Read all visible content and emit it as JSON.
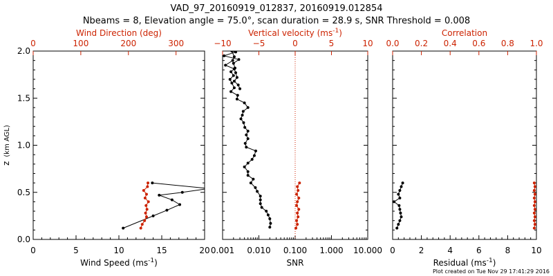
{
  "header": {
    "title": "VAD_97_20160919_012837, 20160919.012854",
    "subtitle": "Nbeams = 8, Elevation angle = 75.0°, scan duration = 28.9 s, SNR Threshold = 0.008",
    "footer": "Plot created on Tue Nov 29 17:41:29 2016"
  },
  "colors": {
    "primary": "#000000",
    "secondary": "#cc2200"
  },
  "chart_data": [
    {
      "type": "line",
      "ylabel_parts": [
        "z",
        "(km AGL)"
      ],
      "ylim": [
        0,
        2.0
      ],
      "yticks": [
        "0.0",
        "0.5",
        "1.0",
        "1.5",
        "2.0"
      ],
      "xlabel_bottom_parts": [
        "Wind Speed (ms",
        "-1",
        ")"
      ],
      "xlim_bottom": [
        0,
        20
      ],
      "xticks_bottom": [
        "0",
        "5",
        "10",
        "15",
        "20"
      ],
      "xlabel_top": "Wind Direction (deg)",
      "xlim_top": [
        0,
        360
      ],
      "xticks_top": [
        "0",
        "100",
        "200",
        "300"
      ],
      "series": [
        {
          "color": "#000000",
          "axis": "bottom",
          "x": [
            10.5,
            14.0,
            15.6,
            17.1,
            16.2,
            14.7,
            17.4,
            20.5,
            13.9
          ],
          "y": [
            0.12,
            0.25,
            0.31,
            0.37,
            0.42,
            0.47,
            0.5,
            0.54,
            0.6
          ]
        },
        {
          "color": "#cc2200",
          "axis": "top",
          "x": [
            226,
            229,
            234,
            238,
            236,
            239,
            237,
            242,
            235,
            238,
            232,
            240,
            241
          ],
          "y": [
            0.12,
            0.16,
            0.2,
            0.24,
            0.28,
            0.32,
            0.36,
            0.4,
            0.44,
            0.48,
            0.52,
            0.56,
            0.6
          ]
        }
      ]
    },
    {
      "type": "line",
      "xscale_bottom": "log",
      "xlabel_bottom": "SNR",
      "xlim_bottom": [
        0.001,
        10
      ],
      "xticks_bottom": [
        "0.001",
        "0.010",
        "0.100",
        "1.000",
        "10.000"
      ],
      "xlabel_top_parts": [
        "Vertical velocity (ms",
        "-1",
        ")"
      ],
      "xlim_top": [
        -10,
        10
      ],
      "xticks_top": [
        "−10",
        "−5",
        "0",
        "5",
        "10"
      ],
      "zero_line": 0,
      "series": [
        {
          "color": "#000000",
          "axis": "bottom",
          "x": [
            0.02,
            0.021,
            0.02,
            0.018,
            0.016,
            0.012,
            0.011,
            0.011,
            0.011,
            0.009,
            0.008,
            0.006,
            0.007,
            0.005,
            0.005,
            0.004,
            0.005,
            0.0065,
            0.0075,
            0.0082,
            0.0045,
            0.0042,
            0.005,
            0.0045,
            0.005,
            0.0041,
            0.0038,
            0.0032,
            0.0035,
            0.0037,
            0.005,
            0.004,
            0.0025,
            0.0026,
            0.0017,
            0.0021,
            0.0018,
            0.0016,
            0.002,
            0.0017,
            0.0022,
            0.002,
            0.0028,
            0.0011,
            0.0023,
            0.0018,
            0.0021,
            0.0019,
            0.0012,
            0.0021,
            0.0023,
            0.0025,
            0.0021,
            0.0027,
            0.003
          ],
          "y": [
            0.13,
            0.17,
            0.22,
            0.26,
            0.3,
            0.34,
            0.38,
            0.42,
            0.46,
            0.51,
            0.55,
            0.6,
            0.64,
            0.68,
            0.72,
            0.77,
            0.81,
            0.85,
            0.89,
            0.94,
            0.98,
            1.02,
            1.07,
            1.11,
            1.15,
            1.19,
            1.24,
            1.28,
            1.32,
            1.36,
            1.4,
            1.45,
            1.49,
            1.53,
            1.57,
            1.61,
            1.66,
            1.7,
            1.74,
            1.78,
            1.82,
            1.87,
            1.91,
            1.95,
            1.99,
            2.0,
            1.94,
            1.9,
            1.85,
            1.81,
            1.77,
            1.72,
            1.68,
            1.64,
            1.6
          ]
        },
        {
          "color": "#cc2200",
          "axis": "top",
          "x": [
            0.1,
            0.3,
            0.2,
            0.4,
            0.3,
            0.5,
            0.2,
            0.3,
            0.5,
            0.2,
            0.4,
            0.3,
            0.6
          ],
          "y": [
            0.12,
            0.16,
            0.2,
            0.24,
            0.28,
            0.32,
            0.36,
            0.4,
            0.44,
            0.48,
            0.52,
            0.56,
            0.6
          ]
        }
      ]
    },
    {
      "type": "line",
      "xlabel_bottom_parts": [
        "Residual (ms",
        "-1",
        ")"
      ],
      "xlim_bottom": [
        0,
        10
      ],
      "xticks_bottom": [
        "0",
        "2",
        "4",
        "6",
        "8",
        "10"
      ],
      "xlabel_top": "Correlation",
      "xlim_top": [
        0,
        1.0
      ],
      "xticks_top": [
        "0.0",
        "0.2",
        "0.4",
        "0.6",
        "0.8",
        "1.0"
      ],
      "series": [
        {
          "color": "#000000",
          "axis": "bottom",
          "x": [
            0.3,
            0.4,
            0.5,
            0.6,
            0.55,
            0.5,
            0.45,
            0.1,
            0.5,
            0.4,
            0.5,
            0.6,
            0.7
          ],
          "y": [
            0.12,
            0.16,
            0.2,
            0.24,
            0.28,
            0.32,
            0.36,
            0.4,
            0.44,
            0.48,
            0.52,
            0.56,
            0.6
          ]
        },
        {
          "color": "#cc2200",
          "axis": "top",
          "x": [
            0.985,
            0.99,
            0.985,
            0.99,
            0.985,
            0.99,
            0.985,
            0.99,
            0.985,
            0.99,
            0.985,
            0.99,
            0.985
          ],
          "y": [
            0.12,
            0.16,
            0.2,
            0.24,
            0.28,
            0.32,
            0.36,
            0.4,
            0.44,
            0.48,
            0.52,
            0.56,
            0.6
          ]
        }
      ]
    }
  ]
}
